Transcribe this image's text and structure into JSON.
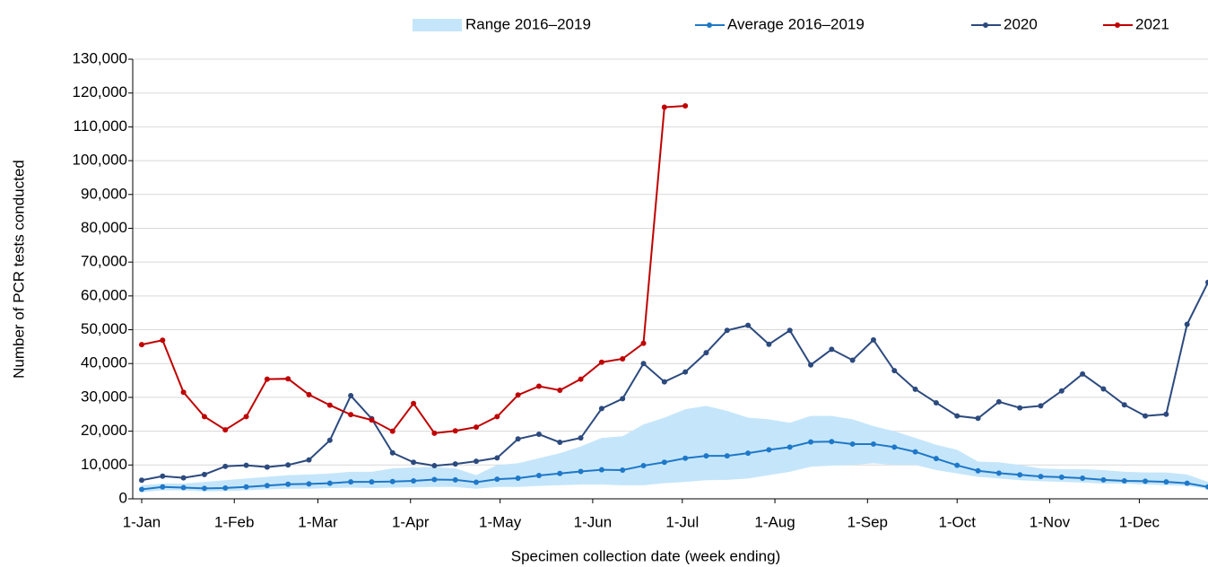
{
  "chart_data": {
    "type": "line",
    "y_label": "Number of PCR tests conducted",
    "x_label": "Specimen collection date (week ending)",
    "x": [
      0,
      7,
      14,
      21,
      28,
      35,
      42,
      49,
      56,
      63,
      70,
      77,
      84,
      91,
      98,
      105,
      112,
      119,
      126,
      133,
      140,
      147,
      154,
      161,
      168,
      175,
      182,
      189,
      196,
      203,
      210,
      217,
      224,
      231,
      238,
      245,
      252,
      259,
      266,
      273,
      280,
      287,
      294,
      301,
      308,
      315,
      322,
      329,
      336,
      343,
      350,
      357
    ],
    "xlim": [
      -3,
      357
    ],
    "xticks": [
      {
        "value": 0,
        "label": "1-Jan"
      },
      {
        "value": 31,
        "label": "1-Feb"
      },
      {
        "value": 59,
        "label": "1-Mar"
      },
      {
        "value": 90,
        "label": "1-Apr"
      },
      {
        "value": 120,
        "label": "1-May"
      },
      {
        "value": 151,
        "label": "1-Jun"
      },
      {
        "value": 181,
        "label": "1-Jul"
      },
      {
        "value": 212,
        "label": "1-Aug"
      },
      {
        "value": 243,
        "label": "1-Sep"
      },
      {
        "value": 273,
        "label": "1-Oct"
      },
      {
        "value": 304,
        "label": "1-Nov"
      },
      {
        "value": 334,
        "label": "1-Dec"
      }
    ],
    "ylim": [
      0,
      130000
    ],
    "yticks": [
      0,
      {
        "value": 10000,
        "label": "10,000"
      },
      {
        "value": 20000,
        "label": "20,000"
      },
      {
        "value": 30000,
        "label": "30,000"
      },
      {
        "value": 40000,
        "label": "40,000"
      },
      {
        "value": 50000,
        "label": "50,000"
      },
      {
        "value": 60000,
        "label": "60,000"
      },
      {
        "value": 70000,
        "label": "70,000"
      },
      {
        "value": 80000,
        "label": "80,000"
      },
      {
        "value": 90000,
        "label": "90,000"
      },
      {
        "value": 100000,
        "label": "100,000"
      },
      {
        "value": 110000,
        "label": "110,000"
      },
      {
        "value": 120000,
        "label": "120,000"
      },
      {
        "value": 130000,
        "label": "130,000"
      }
    ],
    "grid": true,
    "band": {
      "name": "Range 2016–2019",
      "color": "#c5e6fa",
      "high": [
        4000,
        4500,
        4500,
        5000,
        5500,
        6000,
        6500,
        7000,
        7200,
        7500,
        8000,
        8000,
        9000,
        9300,
        9500,
        9000,
        7000,
        10000,
        10500,
        12000,
        13500,
        15500,
        18000,
        18500,
        22000,
        24000,
        26500,
        27500,
        26000,
        24000,
        23500,
        22500,
        24500,
        24500,
        23500,
        21500,
        20000,
        18000,
        16000,
        14500,
        11000,
        10800,
        10000,
        9000,
        8800,
        8800,
        8500,
        8000,
        7800,
        7800,
        7200,
        5000
      ],
      "low": [
        2000,
        2500,
        2500,
        2200,
        2300,
        2500,
        2800,
        3000,
        3000,
        3200,
        3300,
        3200,
        3300,
        3400,
        3500,
        3500,
        3000,
        3500,
        3500,
        3800,
        4000,
        4200,
        4200,
        4000,
        4000,
        4600,
        5000,
        5500,
        5600,
        6000,
        7000,
        8000,
        9500,
        9800,
        10000,
        10500,
        10000,
        10000,
        8500,
        7500,
        6500,
        6000,
        5500,
        5200,
        5000,
        4800,
        4500,
        4500,
        4200,
        4000,
        3800,
        3000
      ]
    },
    "series": [
      {
        "name": "Average 2016–2019",
        "color": "#1f78c8",
        "values": [
          2800,
          3500,
          3300,
          3100,
          3200,
          3500,
          3900,
          4300,
          4400,
          4600,
          5000,
          5000,
          5100,
          5300,
          5700,
          5600,
          4900,
          5800,
          6100,
          6900,
          7500,
          8100,
          8600,
          8500,
          9800,
          10800,
          12000,
          12700,
          12700,
          13500,
          14500,
          15300,
          16800,
          16900,
          16200,
          16200,
          15300,
          13900,
          11900,
          9900,
          8300,
          7600,
          7100,
          6600,
          6400,
          6100,
          5600,
          5300,
          5200,
          5000,
          4600,
          3500
        ]
      },
      {
        "name": "2020",
        "color": "#2c4a7e",
        "values": [
          5500,
          6700,
          6200,
          7200,
          9600,
          9900,
          9400,
          10000,
          11500,
          17300,
          30500,
          23700,
          13600,
          10800,
          9800,
          10300,
          11100,
          12100,
          17700,
          19100,
          16700,
          18000,
          26700,
          29600,
          40000,
          34600,
          37500,
          43200,
          49800,
          51300,
          45700,
          49800,
          39600,
          44200,
          41000,
          47000,
          37900,
          32400,
          28400,
          24500,
          23800,
          28700,
          26900,
          27500,
          31900,
          36900,
          32500,
          27800,
          24500,
          25000,
          51600,
          64000
        ]
      },
      {
        "name": "2021",
        "color": "#c00000",
        "values": [
          45600,
          46900,
          31500,
          24300,
          20400,
          24300,
          35400,
          35500,
          30800,
          27700,
          24900,
          23300,
          20000,
          28200,
          19400,
          20100,
          21200,
          24300,
          30700,
          33300,
          32100,
          35400,
          40400,
          41400,
          46000,
          115800,
          116200,
          null,
          null,
          null,
          null,
          null,
          null,
          null,
          null,
          null,
          null,
          null,
          null,
          null,
          null,
          null,
          null,
          null,
          null,
          null,
          null,
          null,
          null,
          null,
          null,
          null
        ]
      }
    ]
  }
}
